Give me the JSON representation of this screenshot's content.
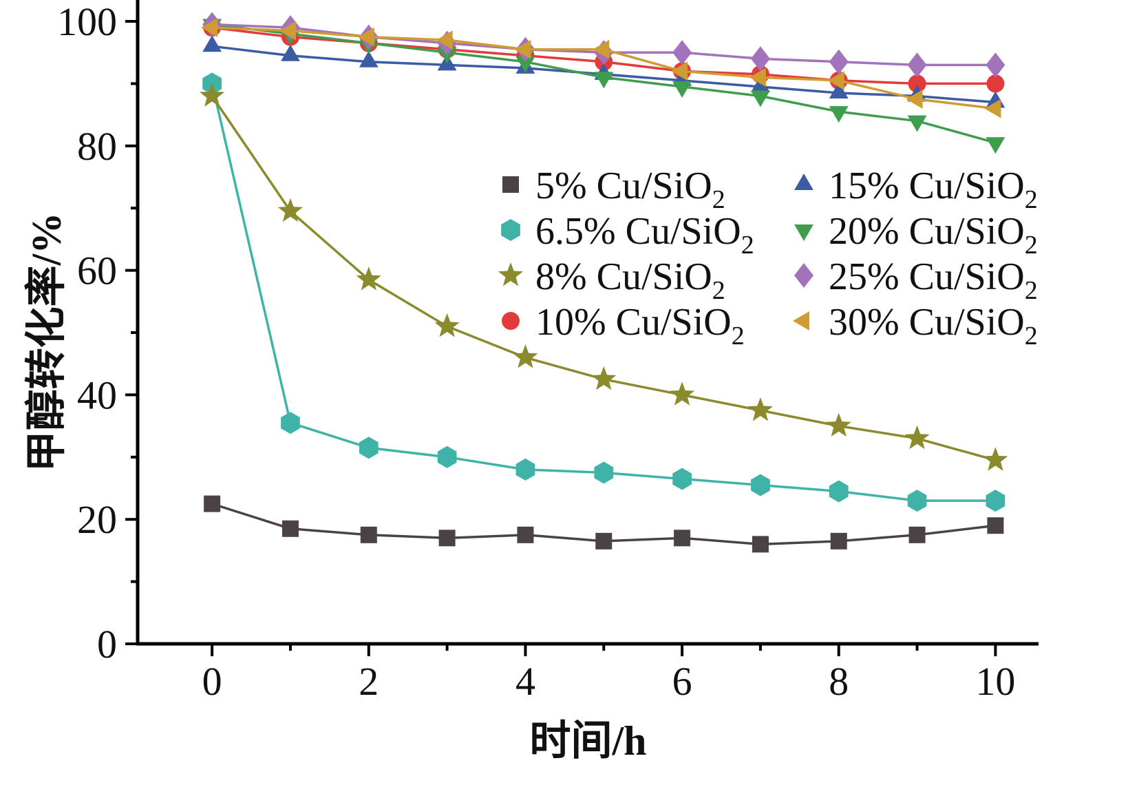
{
  "chart_data": {
    "type": "line",
    "title": "",
    "xlabel": "时间/h",
    "ylabel": "甲醇转化率/%",
    "grid": false,
    "legend_position": "inside-center-right-two-columns",
    "x": [
      0,
      1,
      2,
      3,
      4,
      5,
      6,
      7,
      8,
      9,
      10
    ],
    "xlim": [
      -0.95,
      10.55
    ],
    "ylim": [
      0,
      101
    ],
    "xticks": [
      0,
      2,
      4,
      6,
      8,
      10
    ],
    "yticks": [
      0,
      20,
      40,
      60,
      80,
      100
    ],
    "axis_color": "#000000",
    "series": [
      {
        "name": "5% Cu/SiO2",
        "label_base": "5% Cu/SiO",
        "label_sub": "2",
        "marker": "square",
        "color": "#4a4244",
        "values": [
          22.5,
          18.5,
          17.5,
          17,
          17.5,
          16.5,
          17,
          16,
          16.5,
          17.5,
          19
        ]
      },
      {
        "name": "6.5% Cu/SiO2",
        "label_base": "6.5% Cu/SiO",
        "label_sub": "2",
        "marker": "hexagon",
        "color": "#3fb3a7",
        "values": [
          90,
          35.5,
          31.5,
          30,
          28,
          27.5,
          26.5,
          25.5,
          24.5,
          23,
          23
        ]
      },
      {
        "name": "8% Cu/SiO2",
        "label_base": "8% Cu/SiO",
        "label_sub": "2",
        "marker": "star",
        "color": "#8b8b2e",
        "values": [
          88,
          69.5,
          58.5,
          51,
          46,
          42.5,
          40,
          37.5,
          35,
          33,
          29.5
        ]
      },
      {
        "name": "10% Cu/SiO2",
        "label_base": "10% Cu/SiO",
        "label_sub": "2",
        "marker": "circle",
        "color": "#e23b3b",
        "values": [
          99,
          97.5,
          96.5,
          95.5,
          94.5,
          93.5,
          92,
          91.5,
          90.5,
          90,
          90
        ]
      },
      {
        "name": "15% Cu/SiO2",
        "label_base": "15% Cu/SiO",
        "label_sub": "2",
        "marker": "triangle-up",
        "color": "#3b5ba5",
        "values": [
          96,
          94.5,
          93.5,
          93,
          92.5,
          91.5,
          90.5,
          89.5,
          88.5,
          88,
          87
        ]
      },
      {
        "name": "20% Cu/SiO2",
        "label_base": "20% Cu/SiO",
        "label_sub": "2",
        "marker": "triangle-down",
        "color": "#3f9e4d",
        "values": [
          99.5,
          98,
          96.5,
          95,
          93.5,
          91,
          89.5,
          88,
          85.5,
          84,
          80.5
        ]
      },
      {
        "name": "25% Cu/SiO2",
        "label_base": "25% Cu/SiO",
        "label_sub": "2",
        "marker": "diamond",
        "color": "#a272bb",
        "values": [
          99.5,
          99,
          97.5,
          96.5,
          95.5,
          95,
          95,
          94,
          93.5,
          93,
          93
        ]
      },
      {
        "name": "30% Cu/SiO2",
        "label_base": "30% Cu/SiO",
        "label_sub": "2",
        "marker": "triangle-left",
        "color": "#cf9b33",
        "values": [
          99,
          98.5,
          97.5,
          97,
          95.5,
          95.5,
          92,
          91,
          90.5,
          87.5,
          86
        ]
      }
    ]
  }
}
